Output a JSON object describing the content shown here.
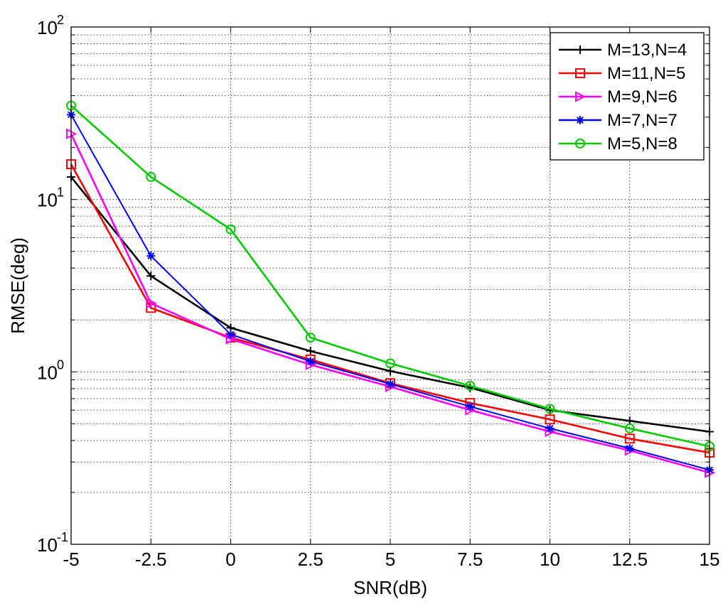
{
  "chart_data": {
    "type": "line",
    "xlabel": "SNR(dB)",
    "ylabel": "RMSE(deg)",
    "x": [
      -5,
      -2.5,
      0,
      2.5,
      5,
      7.5,
      10,
      12.5,
      15
    ],
    "xlim": [
      -5,
      15
    ],
    "ylim": [
      0.1,
      100
    ],
    "yscale": "log",
    "xticks": [
      "-5",
      "-2.5",
      "0",
      "2.5",
      "5",
      "7.5",
      "10",
      "12.5",
      "15"
    ],
    "yticks": [
      {
        "base": "10",
        "exp": "-1",
        "value": 0.1
      },
      {
        "base": "10",
        "exp": "0",
        "value": 1
      },
      {
        "base": "10",
        "exp": "1",
        "value": 10
      },
      {
        "base": "10",
        "exp": "2",
        "value": 100
      }
    ],
    "grid": true,
    "legend": "top-right",
    "series": [
      {
        "name": "M=13,N=4",
        "color": "#000000",
        "marker": "plus",
        "values": [
          13.5,
          3.6,
          1.8,
          1.32,
          1.01,
          0.81,
          0.6,
          0.52,
          0.45
        ]
      },
      {
        "name": "M=11,N=5",
        "color": "#ff0000",
        "marker": "square",
        "values": [
          16,
          2.35,
          1.58,
          1.18,
          0.86,
          0.66,
          0.53,
          0.41,
          0.34
        ]
      },
      {
        "name": "M=9,N=6",
        "color": "#ff00ff",
        "marker": "triangle-right",
        "values": [
          24,
          2.5,
          1.55,
          1.1,
          0.82,
          0.6,
          0.45,
          0.35,
          0.26
        ]
      },
      {
        "name": "M=7,N=7",
        "color": "#0000ff",
        "marker": "star",
        "values": [
          31,
          4.7,
          1.65,
          1.15,
          0.85,
          0.63,
          0.47,
          0.36,
          0.27
        ]
      },
      {
        "name": "M=5,N=8",
        "color": "#00cc00",
        "marker": "circle",
        "values": [
          35,
          13.5,
          6.7,
          1.58,
          1.12,
          0.83,
          0.61,
          0.47,
          0.37
        ]
      }
    ]
  }
}
